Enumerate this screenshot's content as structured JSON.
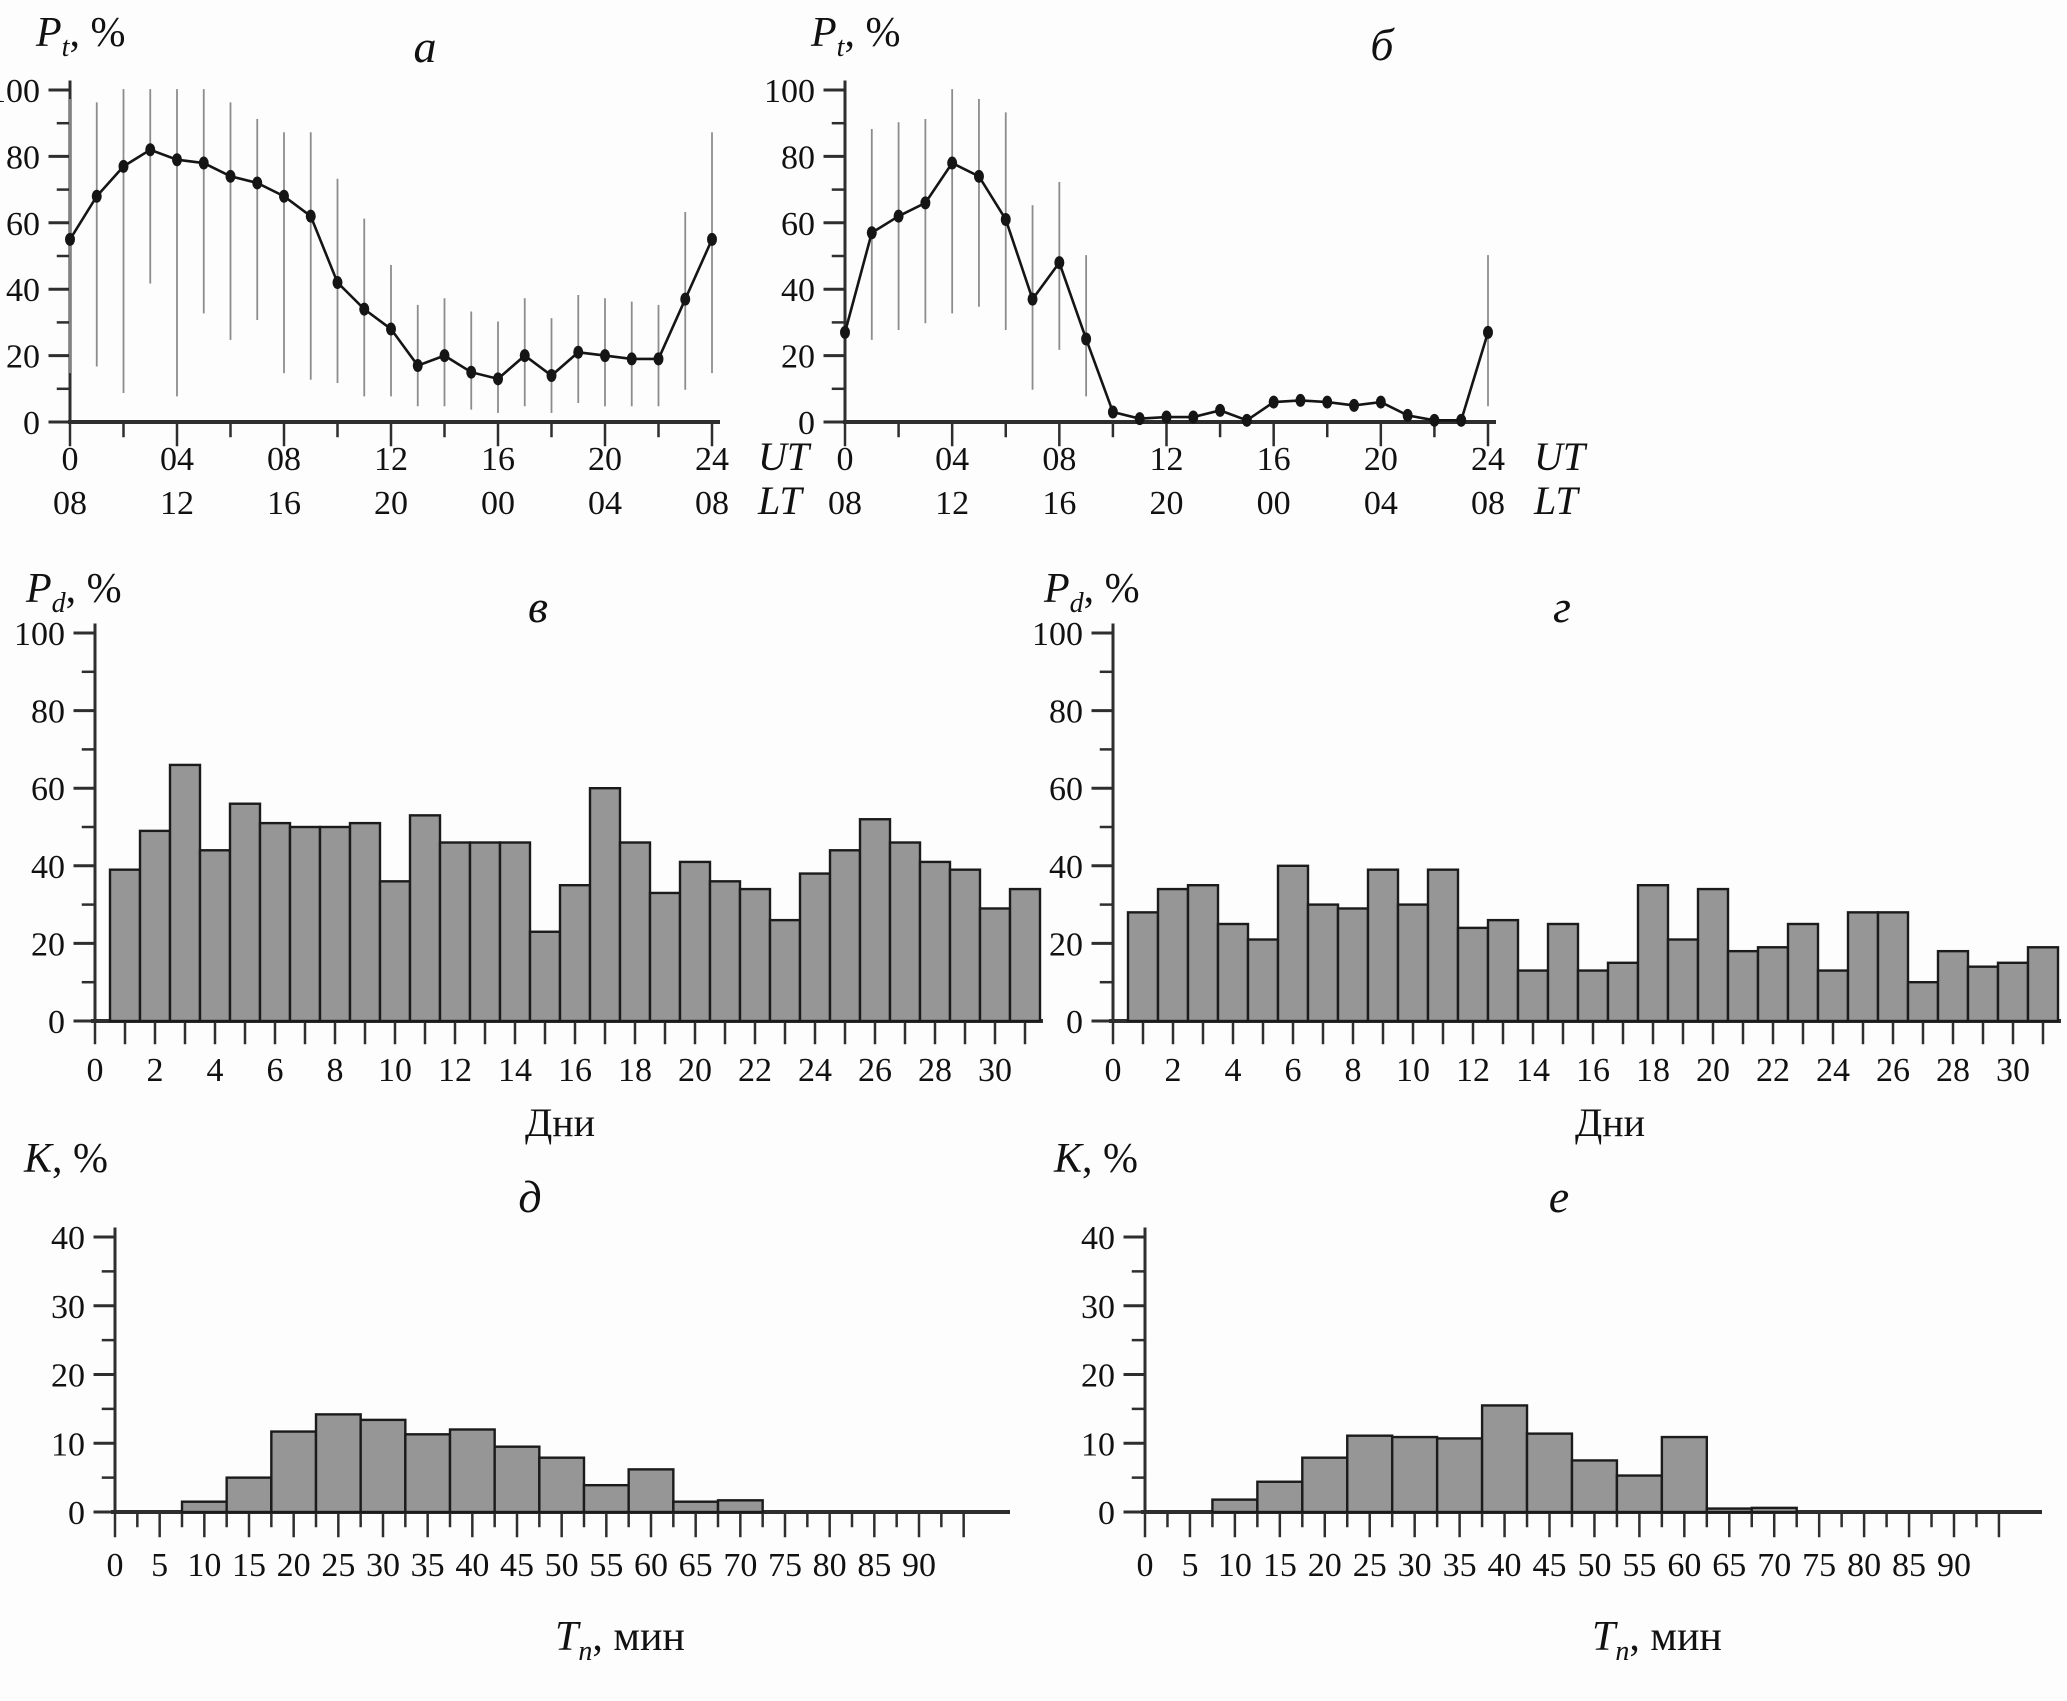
{
  "figure": {
    "background": "#fdfdfd",
    "bar_fill": "#969696",
    "bar_stroke": "#1b1b1b",
    "line_color": "#151515",
    "error_bar_color": "#8c8c8c",
    "axis_color": "#2e2e2e",
    "text_color": "#111111"
  },
  "chart_data": [
    {
      "id": "a",
      "type": "line",
      "panel_letter": "a",
      "y_axis": {
        "label_main": "P",
        "label_sub": "t",
        "label_unit": ", %",
        "ticks": [
          0,
          20,
          40,
          60,
          80,
          100
        ],
        "range": [
          0,
          100
        ]
      },
      "x_axis": {
        "range": [
          0,
          24
        ],
        "major_step": 4,
        "minor_step": 2,
        "primary": {
          "name": "UT",
          "labels": [
            "0",
            "04",
            "08",
            "12",
            "16",
            "20",
            "24"
          ]
        },
        "secondary": {
          "name": "LT",
          "labels": [
            "08",
            "12",
            "16",
            "20",
            "00",
            "04",
            "08"
          ]
        }
      },
      "x": [
        0,
        1,
        2,
        3,
        4,
        5,
        6,
        7,
        8,
        9,
        10,
        11,
        12,
        13,
        14,
        15,
        16,
        17,
        18,
        19,
        20,
        21,
        22,
        23,
        24
      ],
      "y": [
        55,
        68,
        77,
        82,
        79,
        78,
        74,
        72,
        68,
        62,
        42,
        34,
        28,
        17,
        20,
        15,
        13,
        20,
        14,
        21,
        20,
        19,
        19,
        37,
        55
      ],
      "err_low": [
        15,
        17,
        9,
        42,
        8,
        33,
        25,
        31,
        15,
        13,
        12,
        8,
        8,
        5,
        5,
        4,
        3,
        5,
        3,
        6,
        5,
        5,
        5,
        10,
        15
      ],
      "err_high": [
        97,
        96,
        100,
        100,
        100,
        100,
        96,
        91,
        87,
        87,
        73,
        61,
        47,
        35,
        37,
        33,
        30,
        37,
        31,
        38,
        37,
        36,
        35,
        63,
        87
      ]
    },
    {
      "id": "b",
      "type": "line",
      "panel_letter": "б",
      "y_axis": {
        "label_main": "P",
        "label_sub": "t",
        "label_unit": ", %",
        "ticks": [
          0,
          20,
          40,
          60,
          80,
          100
        ],
        "range": [
          0,
          100
        ]
      },
      "x_axis": {
        "range": [
          0,
          24
        ],
        "major_step": 4,
        "minor_step": 2,
        "primary": {
          "name": "UT",
          "labels": [
            "0",
            "04",
            "08",
            "12",
            "16",
            "20",
            "24"
          ]
        },
        "secondary": {
          "name": "LT",
          "labels": [
            "08",
            "12",
            "16",
            "20",
            "00",
            "04",
            "08"
          ]
        }
      },
      "x": [
        0,
        1,
        2,
        3,
        4,
        5,
        6,
        7,
        8,
        9,
        10,
        11,
        12,
        13,
        14,
        15,
        16,
        17,
        18,
        19,
        20,
        21,
        22,
        23,
        24
      ],
      "y": [
        27,
        57,
        62,
        66,
        78,
        74,
        61,
        37,
        48,
        25,
        3,
        1,
        1.5,
        1.5,
        3.5,
        0.5,
        6,
        6.5,
        6,
        5,
        6,
        2,
        0.5,
        0.5,
        27
      ],
      "err_low": [
        27,
        25,
        28,
        30,
        33,
        35,
        28,
        10,
        22,
        8,
        3,
        1,
        1.5,
        1.5,
        3.5,
        0.5,
        6,
        6.5,
        6,
        5,
        6,
        2,
        0.5,
        0.5,
        5
      ],
      "err_high": [
        27,
        88,
        90,
        91,
        100,
        97,
        93,
        65,
        72,
        50,
        3,
        1,
        1.5,
        1.5,
        3.5,
        0.5,
        6,
        6.5,
        6,
        5,
        6,
        2,
        0.5,
        0.5,
        50
      ]
    },
    {
      "id": "v",
      "type": "bar",
      "panel_letter": "в",
      "y_axis": {
        "label_main": "P",
        "label_sub": "d",
        "label_unit": ", %",
        "ticks": [
          0,
          20,
          40,
          60,
          80,
          100
        ],
        "range": [
          0,
          100
        ]
      },
      "x_axis": {
        "label": "Дни",
        "range": [
          0,
          31
        ],
        "tick_step": 1,
        "label_step": 2,
        "labels": [
          "0",
          "2",
          "4",
          "6",
          "8",
          "10",
          "12",
          "14",
          "16",
          "18",
          "20",
          "22",
          "24",
          "26",
          "28",
          "30"
        ]
      },
      "categories": [
        1,
        2,
        3,
        4,
        5,
        6,
        7,
        8,
        9,
        10,
        11,
        12,
        13,
        14,
        15,
        16,
        17,
        18,
        19,
        20,
        21,
        22,
        23,
        24,
        25,
        26,
        27,
        28,
        29,
        30,
        31
      ],
      "values": [
        39,
        49,
        66,
        44,
        56,
        51,
        50,
        50,
        51,
        36,
        53,
        46,
        46,
        46,
        23,
        35,
        60,
        46,
        33,
        41,
        36,
        34,
        26,
        38,
        44,
        52,
        46,
        41,
        39,
        29,
        34
      ]
    },
    {
      "id": "g",
      "type": "bar",
      "panel_letter": "г",
      "y_axis": {
        "label_main": "P",
        "label_sub": "d",
        "label_unit": ", %",
        "ticks": [
          0,
          20,
          40,
          60,
          80,
          100
        ],
        "range": [
          0,
          100
        ]
      },
      "x_axis": {
        "label": "Дни",
        "range": [
          0,
          31
        ],
        "tick_step": 1,
        "label_step": 2,
        "labels": [
          "0",
          "2",
          "4",
          "6",
          "8",
          "10",
          "12",
          "14",
          "16",
          "18",
          "20",
          "22",
          "24",
          "26",
          "28",
          "30"
        ]
      },
      "categories": [
        1,
        2,
        3,
        4,
        5,
        6,
        7,
        8,
        9,
        10,
        11,
        12,
        13,
        14,
        15,
        16,
        17,
        18,
        19,
        20,
        21,
        22,
        23,
        24,
        25,
        26,
        27,
        28,
        29,
        30,
        31
      ],
      "values": [
        28,
        34,
        35,
        25,
        21,
        40,
        30,
        29,
        39,
        30,
        39,
        24,
        26,
        13,
        25,
        13,
        15,
        35,
        21,
        34,
        18,
        19,
        25,
        13,
        28,
        28,
        10,
        18,
        14,
        15,
        19
      ]
    },
    {
      "id": "d",
      "type": "histogram",
      "panel_letter": "д",
      "y_axis": {
        "label_main": "K",
        "label_sub": "",
        "label_unit": ", %",
        "ticks": [
          0,
          10,
          20,
          30,
          40
        ],
        "range": [
          0,
          40
        ]
      },
      "x_axis": {
        "label_main": "T",
        "label_sub": "n",
        "label_unit": ", мин",
        "range": [
          0,
          90
        ],
        "major_step": 5,
        "labels": [
          "0",
          "5",
          "10",
          "15",
          "20",
          "25",
          "30",
          "35",
          "40",
          "45",
          "50",
          "55",
          "60",
          "65",
          "70",
          "75",
          "80",
          "85",
          "90"
        ]
      },
      "bin_centers": [
        10,
        15,
        20,
        25,
        30,
        35,
        40,
        45,
        50,
        55,
        60,
        65,
        70
      ],
      "bin_width": 5,
      "values": [
        1.5,
        5,
        11.7,
        14.2,
        13.4,
        11.3,
        12,
        9.5,
        7.9,
        3.9,
        6.2,
        1.5,
        1.7
      ]
    },
    {
      "id": "e",
      "type": "histogram",
      "panel_letter": "е",
      "y_axis": {
        "label_main": "K",
        "label_sub": "",
        "label_unit": ", %",
        "ticks": [
          0,
          10,
          20,
          30,
          40
        ],
        "range": [
          0,
          40
        ]
      },
      "x_axis": {
        "label_main": "T",
        "label_sub": "n",
        "label_unit": ", мин",
        "range": [
          0,
          90
        ],
        "major_step": 5,
        "labels": [
          "0",
          "5",
          "10",
          "15",
          "20",
          "25",
          "30",
          "35",
          "40",
          "45",
          "50",
          "55",
          "60",
          "65",
          "70",
          "75",
          "80",
          "85",
          "90"
        ]
      },
      "bin_centers": [
        10,
        15,
        20,
        25,
        30,
        35,
        40,
        45,
        50,
        55,
        60,
        65,
        70
      ],
      "bin_width": 5,
      "values": [
        1.8,
        4.4,
        7.9,
        11.1,
        10.9,
        10.7,
        15.5,
        11.4,
        7.5,
        5.3,
        10.9,
        0.5,
        0.6
      ]
    }
  ]
}
